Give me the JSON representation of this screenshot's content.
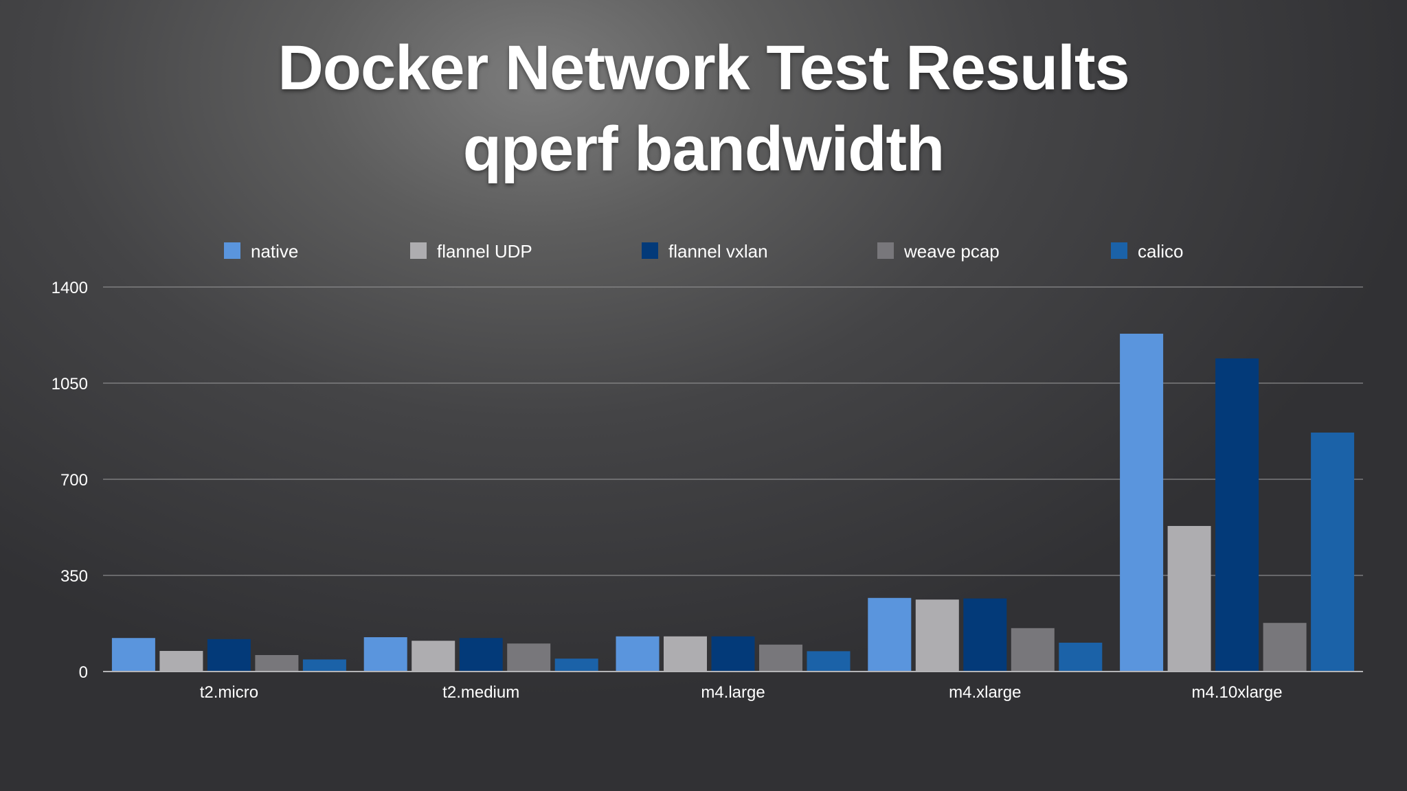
{
  "title": {
    "line1": "Docker Network Test Results",
    "line2": "qperf bandwidth"
  },
  "colors": {
    "native": "#5a95dd",
    "flannel_udp": "#aeadb0",
    "flannel_vxlan": "#033a79",
    "weave_pcap": "#78777b",
    "calico": "#1b62a8",
    "grid": "#8a8a8c",
    "axis": "#b5b5b7"
  },
  "chart_data": {
    "type": "bar",
    "title": "Docker Network Test Results qperf bandwidth",
    "xlabel": "",
    "ylabel": "",
    "ylim": [
      0,
      1400
    ],
    "yticks": [
      0,
      350,
      700,
      1050,
      1400
    ],
    "grid": true,
    "legend_position": "top",
    "categories": [
      "t2.micro",
      "t2.medium",
      "m4.large",
      "m4.xlarge",
      "m4.10xlarge"
    ],
    "series": [
      {
        "name": "native",
        "color": "#5a95dd",
        "values": [
          122,
          125,
          128,
          268,
          1230
        ]
      },
      {
        "name": "flannel UDP",
        "color": "#aeadb0",
        "values": [
          75,
          112,
          128,
          262,
          530
        ]
      },
      {
        "name": "flannel vxlan",
        "color": "#033a79",
        "values": [
          118,
          122,
          128,
          266,
          1140
        ]
      },
      {
        "name": "weave pcap",
        "color": "#78777b",
        "values": [
          60,
          102,
          98,
          158,
          177
        ]
      },
      {
        "name": "calico",
        "color": "#1b62a8",
        "values": [
          44,
          47,
          74,
          105,
          870
        ]
      }
    ]
  }
}
